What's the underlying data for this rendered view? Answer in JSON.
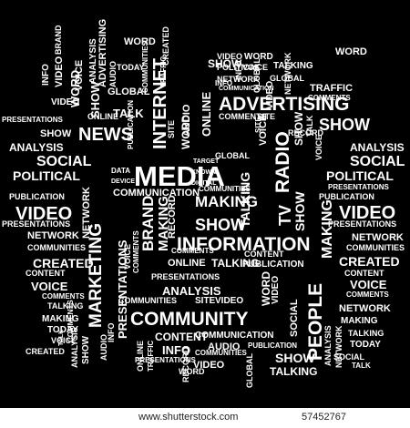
{
  "colors": {
    "background": "#000000",
    "word": "#ffffff",
    "footer_bg": "#ffffff",
    "footer_text": "#222222"
  },
  "words": {
    "media": "MEDIA",
    "information": "INFORMATION",
    "community": "COMMUNITY",
    "advertising": "ADVERTISING",
    "news": "NEWS",
    "internet": "INTERNET",
    "radio": "RADIO",
    "tv": "TV",
    "people": "PEOPLE",
    "marketing": "MARKETING",
    "brand": "BRAND",
    "making": "MAKING",
    "show": "SHOW",
    "video": "VIDEO",
    "social": "SOCIAL",
    "political": "POLITICAL",
    "analysis": "ANALYSIS",
    "created": "CREATED",
    "voice": "VOICE",
    "presentations": "PRESENTATIONS",
    "publication": "PUBLICATION",
    "network": "NETWORK",
    "communities": "COMMUNITIES",
    "communication": "COMMUNICATION",
    "content": "CONTENT",
    "online": "ONLINE",
    "talking": "TALKING",
    "talk": "TALK",
    "today": "TODAY",
    "word": "WORD",
    "info": "INFO",
    "audio": "AUDIO",
    "global": "GLOBAL",
    "traffic": "TRAFFIC",
    "site": "SITE",
    "comments": "COMMENTS",
    "record": "RECORD",
    "digital": "DIGITAL",
    "known": "KNOWN",
    "target": "TARGET",
    "data": "DATA",
    "device": "DEVICE"
  },
  "watermark": {
    "url": "www.shutterstock.com",
    "id": "57452767"
  }
}
